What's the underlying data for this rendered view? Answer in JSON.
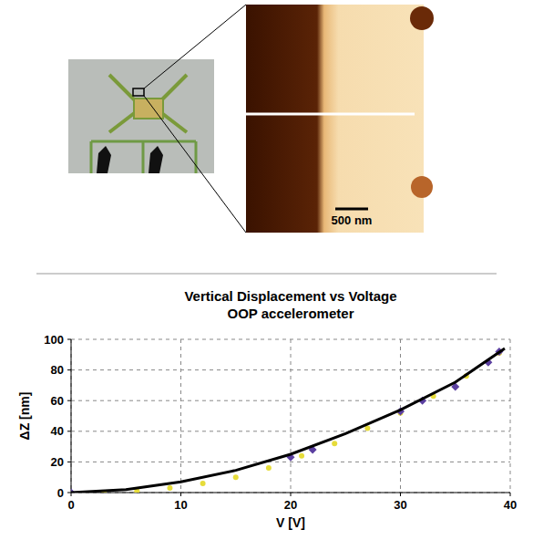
{
  "image": {
    "scale_bar": "500 nm"
  },
  "chart_data": {
    "type": "line",
    "title": "Vertical Displacement vs Voltage",
    "subtitle": "OOP accelerometer",
    "x_label": "V [V]",
    "y_label": "ΔZ [nm]",
    "xlim": [
      0,
      40
    ],
    "ylim": [
      0,
      100
    ],
    "xticks": [
      0,
      10,
      20,
      30,
      40
    ],
    "yticks": [
      0,
      20,
      40,
      60,
      80,
      100
    ],
    "grid": true,
    "series": [
      {
        "type": "scatter",
        "color": "#e6dc3a",
        "marker": "circle",
        "x": [
          3,
          6,
          9,
          12,
          15,
          18,
          21,
          24,
          27,
          30,
          33,
          36,
          39
        ],
        "values": [
          0,
          1,
          3,
          6,
          10,
          16,
          24,
          32,
          42,
          52,
          63,
          76,
          91
        ]
      },
      {
        "type": "scatter",
        "color": "#5b3fa0",
        "marker": "diamond",
        "x": [
          0,
          20,
          22,
          30,
          32,
          35,
          38,
          39
        ],
        "values": [
          0,
          23,
          28,
          53,
          60,
          69,
          85,
          92
        ]
      },
      {
        "type": "line",
        "color": "#000000",
        "line_style": "solid",
        "x": [
          0,
          5,
          10,
          15,
          20,
          25,
          30,
          35,
          39.5
        ],
        "values": [
          0,
          2,
          7,
          14.5,
          25,
          38.5,
          54,
          72,
          94
        ]
      }
    ]
  }
}
